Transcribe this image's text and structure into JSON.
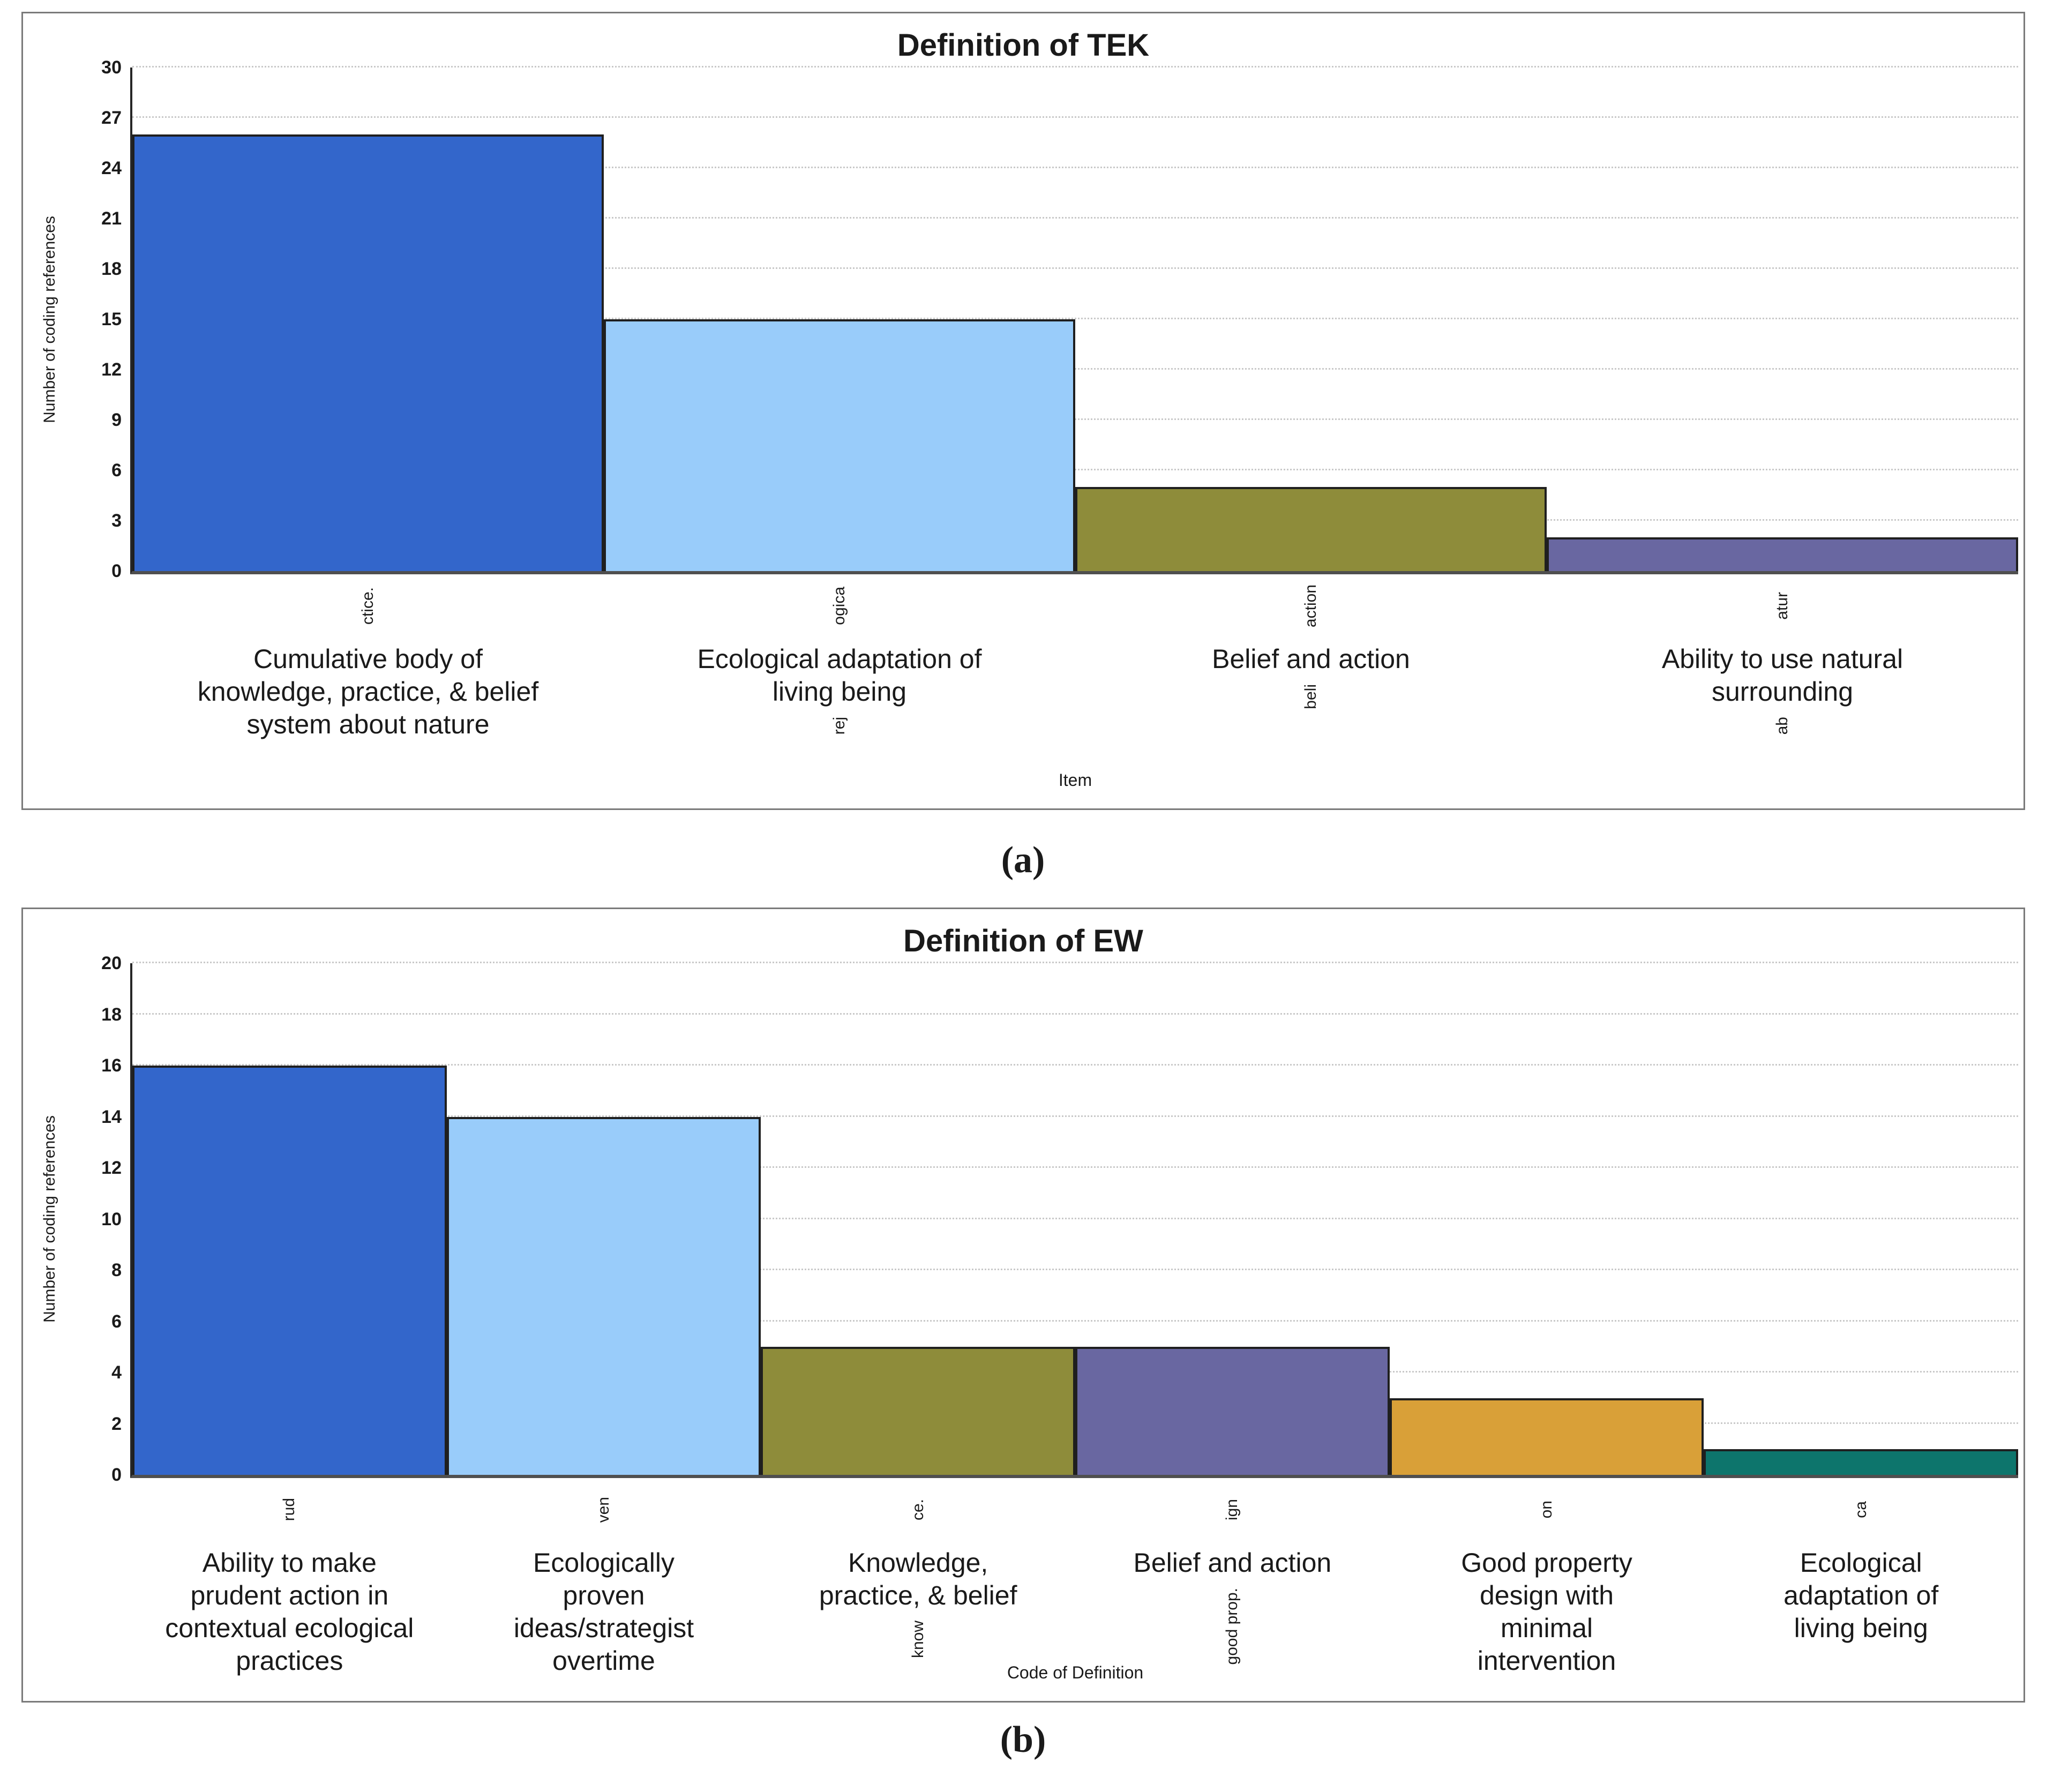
{
  "captions": {
    "a": "(a)",
    "b": "(b)"
  },
  "chart_data": [
    {
      "type": "bar",
      "title": "Definition of TEK",
      "xlabel": "Item",
      "ylabel": "Number of coding references",
      "ylim": [
        0,
        30
      ],
      "yticks": [
        0,
        3,
        6,
        9,
        12,
        15,
        18,
        21,
        24,
        27,
        30
      ],
      "grid": true,
      "legend": "none",
      "categories": [
        {
          "label": "Cumulative body of\nknowledge, practice, & belief\nsystem about nature",
          "code_top": "ctice.",
          "code_bottom": ""
        },
        {
          "label": "Ecological adaptation of\nliving being",
          "code_top": "ogica",
          "code_bottom": "rej"
        },
        {
          "label": "Belief and action",
          "code_top": "action",
          "code_bottom": "beli"
        },
        {
          "label": "Ability to use natural\nsurrounding",
          "code_top": "atur",
          "code_bottom": "ab"
        }
      ],
      "values": [
        26,
        15,
        5,
        2
      ],
      "colors": [
        "#3366cb",
        "#99ccfa",
        "#8e8c3a",
        "#6967a1"
      ]
    },
    {
      "type": "bar",
      "title": "Definition of EW",
      "xlabel": "Code of Definition",
      "ylabel": "Number of coding references",
      "ylim": [
        0,
        20
      ],
      "yticks": [
        0,
        2,
        4,
        6,
        8,
        10,
        12,
        14,
        16,
        18,
        20
      ],
      "grid": true,
      "legend": "none",
      "categories": [
        {
          "label": "Ability to make\nprudent action in\ncontextual ecological\npractices",
          "code_top": "rud",
          "code_bottom": ""
        },
        {
          "label": "Ecologically\nproven\nideas/strategist\novertime",
          "code_top": "ven",
          "code_bottom": ""
        },
        {
          "label": "Knowledge,\npractice, & belief",
          "code_top": "ce.",
          "code_bottom": "know"
        },
        {
          "label": "Belief and action",
          "code_top": "ign",
          "code_bottom": "good prop."
        },
        {
          "label": "Good property\ndesign with\nminimal\nintervention",
          "code_top": "on",
          "code_bottom": ""
        },
        {
          "label": "Ecological\nadaptation of\nliving being",
          "code_top": "ca",
          "code_bottom": ""
        }
      ],
      "values": [
        16,
        14,
        5,
        5,
        3,
        1
      ],
      "colors": [
        "#3366cb",
        "#99ccfa",
        "#8e8c3a",
        "#6967a1",
        "#d9a038",
        "#0d756c"
      ]
    }
  ]
}
